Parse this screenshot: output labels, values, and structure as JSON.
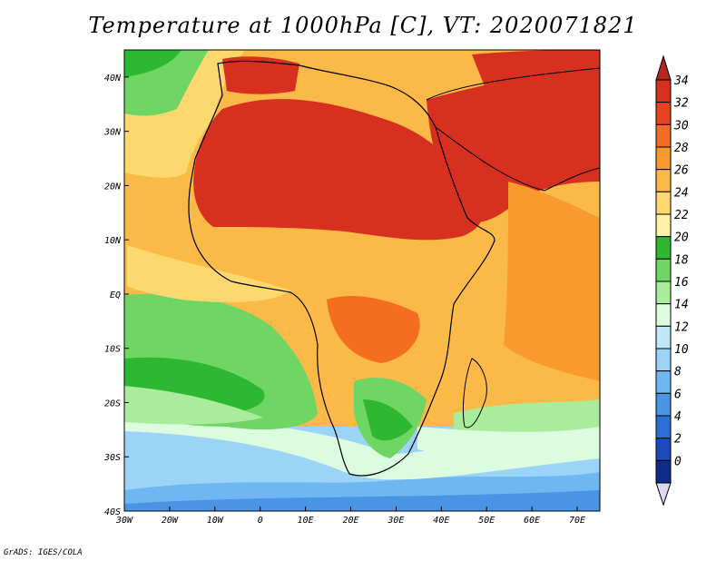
{
  "title": "Temperature at 1000hPa [C], VT: 2020071821",
  "credit": "GrADS: IGES/COLA",
  "map": {
    "lon_range": [
      -30,
      75
    ],
    "lat_range": [
      -40,
      45
    ],
    "lon_ticks": [
      "30W",
      "20W",
      "10W",
      "0",
      "10E",
      "20E",
      "30E",
      "40E",
      "50E",
      "60E",
      "70E"
    ],
    "lat_ticks": [
      "40N",
      "30N",
      "20N",
      "10N",
      "EQ",
      "10S",
      "20S",
      "30S",
      "40S"
    ]
  },
  "colorbar": {
    "labels": [
      "34",
      "32",
      "30",
      "28",
      "26",
      "24",
      "22",
      "20",
      "18",
      "16",
      "14",
      "12",
      "10",
      "8",
      "6",
      "4",
      "2",
      "0"
    ],
    "colors": [
      "#d7301f",
      "#e8431f",
      "#f46d21",
      "#f99a2c",
      "#fbb947",
      "#fdd86e",
      "#fff1a8",
      "#2eb832",
      "#6fd664",
      "#a8ec9c",
      "#dcfce0",
      "#bfe7f8",
      "#9cd4f8",
      "#6fb7f2",
      "#4a94e6",
      "#2e6fd6",
      "#1d4bbd",
      "#0e2a8a"
    ],
    "top_arrow": "#b4271f",
    "bottom_arrow": "#dcd8f4"
  }
}
